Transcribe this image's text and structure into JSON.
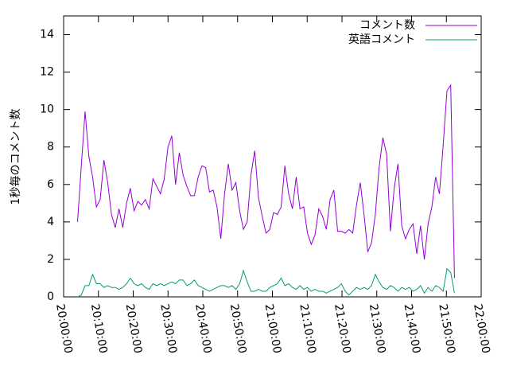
{
  "chart_data": {
    "type": "line",
    "ylabel": "1秒毎のコメント数",
    "xlim": [
      "20:00:00",
      "22:00:00"
    ],
    "xticks": [
      "20:00:00",
      "20:10:00",
      "20:20:00",
      "20:30:00",
      "20:40:00",
      "20:50:00",
      "21:00:00",
      "21:10:00",
      "21:20:00",
      "21:30:00",
      "21:40:00",
      "21:50:00",
      "22:00:00"
    ],
    "ylim": [
      0,
      15
    ],
    "yticks": [
      0,
      2,
      4,
      6,
      8,
      10,
      12,
      14
    ],
    "grid": false,
    "legend": "top-right",
    "x": [
      "20:04:00",
      "20:05:05",
      "20:06:10",
      "20:07:15",
      "20:08:20",
      "20:09:25",
      "20:10:30",
      "20:11:35",
      "20:12:40",
      "20:13:45",
      "20:14:50",
      "20:15:55",
      "20:17:00",
      "20:18:05",
      "20:19:10",
      "20:20:15",
      "20:21:20",
      "20:22:25",
      "20:23:30",
      "20:24:35",
      "20:25:40",
      "20:26:45",
      "20:27:50",
      "20:28:55",
      "20:30:00",
      "20:31:05",
      "20:32:10",
      "20:33:15",
      "20:34:20",
      "20:35:25",
      "20:36:30",
      "20:37:35",
      "20:38:40",
      "20:39:45",
      "20:40:50",
      "20:41:55",
      "20:43:00",
      "20:44:05",
      "20:45:10",
      "20:46:15",
      "20:47:20",
      "20:48:25",
      "20:49:30",
      "20:50:35",
      "20:51:40",
      "20:52:45",
      "20:53:50",
      "20:54:55",
      "20:56:00",
      "20:57:05",
      "20:58:10",
      "20:59:15",
      "21:00:20",
      "21:01:25",
      "21:02:30",
      "21:03:35",
      "21:04:40",
      "21:05:45",
      "21:06:50",
      "21:07:55",
      "21:09:00",
      "21:10:05",
      "21:11:10",
      "21:12:15",
      "21:13:20",
      "21:14:25",
      "21:15:30",
      "21:16:35",
      "21:17:40",
      "21:18:45",
      "21:19:50",
      "21:20:55",
      "21:22:00",
      "21:23:05",
      "21:24:10",
      "21:25:15",
      "21:26:20",
      "21:27:25",
      "21:28:30",
      "21:29:35",
      "21:30:40",
      "21:31:45",
      "21:32:50",
      "21:33:55",
      "21:35:00",
      "21:36:05",
      "21:37:10",
      "21:38:15",
      "21:39:20",
      "21:40:25",
      "21:41:30",
      "21:42:35",
      "21:43:40",
      "21:44:45",
      "21:45:50",
      "21:46:55",
      "21:48:00",
      "21:49:05",
      "21:50:10",
      "21:51:15",
      "21:52:20"
    ],
    "series": [
      {
        "name": "コメント数",
        "color": "#9400d3",
        "values": [
          4.0,
          7.0,
          9.9,
          7.5,
          6.4,
          4.8,
          5.2,
          7.3,
          6.1,
          4.4,
          3.7,
          4.7,
          3.7,
          5.0,
          5.8,
          4.6,
          5.1,
          4.9,
          5.2,
          4.7,
          6.3,
          5.9,
          5.5,
          6.3,
          8.0,
          8.6,
          6.0,
          7.7,
          6.5,
          5.9,
          5.4,
          5.4,
          6.4,
          7.0,
          6.9,
          5.6,
          5.7,
          4.8,
          3.1,
          5.5,
          7.1,
          5.7,
          6.1,
          4.6,
          3.6,
          4.0,
          6.5,
          7.8,
          5.3,
          4.3,
          3.4,
          3.6,
          4.5,
          4.4,
          4.8,
          7.0,
          5.5,
          4.7,
          6.4,
          4.7,
          4.8,
          3.4,
          2.8,
          3.3,
          4.7,
          4.3,
          3.6,
          5.2,
          5.7,
          3.5,
          3.5,
          3.4,
          3.6,
          3.4,
          4.9,
          6.1,
          4.4,
          2.4,
          2.9,
          4.4,
          6.9,
          8.5,
          7.6,
          3.5,
          5.8,
          7.1,
          3.8,
          3.1,
          3.6,
          3.9,
          2.3,
          3.8,
          2.0,
          3.9,
          4.8,
          6.4,
          5.5,
          8.1,
          11.0,
          11.3,
          1.0
        ]
      },
      {
        "name": "英語コメント",
        "color": "#009e73",
        "values": [
          0.0,
          0.1,
          0.6,
          0.6,
          1.2,
          0.7,
          0.7,
          0.5,
          0.6,
          0.5,
          0.5,
          0.4,
          0.5,
          0.7,
          1.0,
          0.7,
          0.6,
          0.7,
          0.5,
          0.4,
          0.7,
          0.6,
          0.7,
          0.6,
          0.7,
          0.8,
          0.7,
          0.9,
          0.9,
          0.6,
          0.7,
          0.9,
          0.6,
          0.5,
          0.4,
          0.3,
          0.4,
          0.5,
          0.6,
          0.6,
          0.5,
          0.6,
          0.4,
          0.7,
          1.4,
          0.8,
          0.3,
          0.3,
          0.4,
          0.3,
          0.3,
          0.5,
          0.6,
          0.7,
          1.0,
          0.6,
          0.7,
          0.5,
          0.4,
          0.6,
          0.4,
          0.5,
          0.3,
          0.4,
          0.3,
          0.3,
          0.2,
          0.3,
          0.4,
          0.5,
          0.7,
          0.3,
          0.1,
          0.3,
          0.5,
          0.4,
          0.5,
          0.4,
          0.6,
          1.2,
          0.8,
          0.5,
          0.4,
          0.6,
          0.5,
          0.3,
          0.5,
          0.4,
          0.5,
          0.3,
          0.4,
          0.6,
          0.2,
          0.5,
          0.3,
          0.6,
          0.5,
          0.3,
          1.5,
          1.3,
          0.2
        ]
      }
    ]
  }
}
